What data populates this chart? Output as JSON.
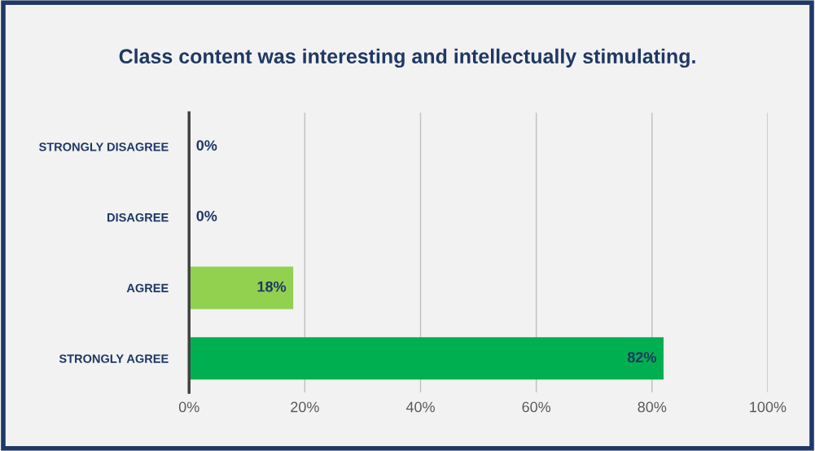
{
  "chart_data": {
    "type": "bar",
    "orientation": "horizontal",
    "title": "Class content was interesting and intellectually stimulating.",
    "categories": [
      "STRONGLY DISAGREE",
      "DISAGREE",
      "AGREE",
      "STRONGLY AGREE"
    ],
    "values": [
      0,
      0,
      18,
      82
    ],
    "colors": [
      "#92d050",
      "#92d050",
      "#92d050",
      "#00b050"
    ],
    "value_labels": [
      "0%",
      "0%",
      "18%",
      "82%"
    ],
    "xlim": [
      0,
      100
    ],
    "xticks": [
      {
        "value": 0,
        "label": "0%"
      },
      {
        "value": 20,
        "label": "20%"
      },
      {
        "value": 40,
        "label": "40%"
      },
      {
        "value": 60,
        "label": "60%"
      },
      {
        "value": 80,
        "label": "80%"
      },
      {
        "value": 100,
        "label": "100%"
      }
    ],
    "grid": "x",
    "legend": false
  }
}
